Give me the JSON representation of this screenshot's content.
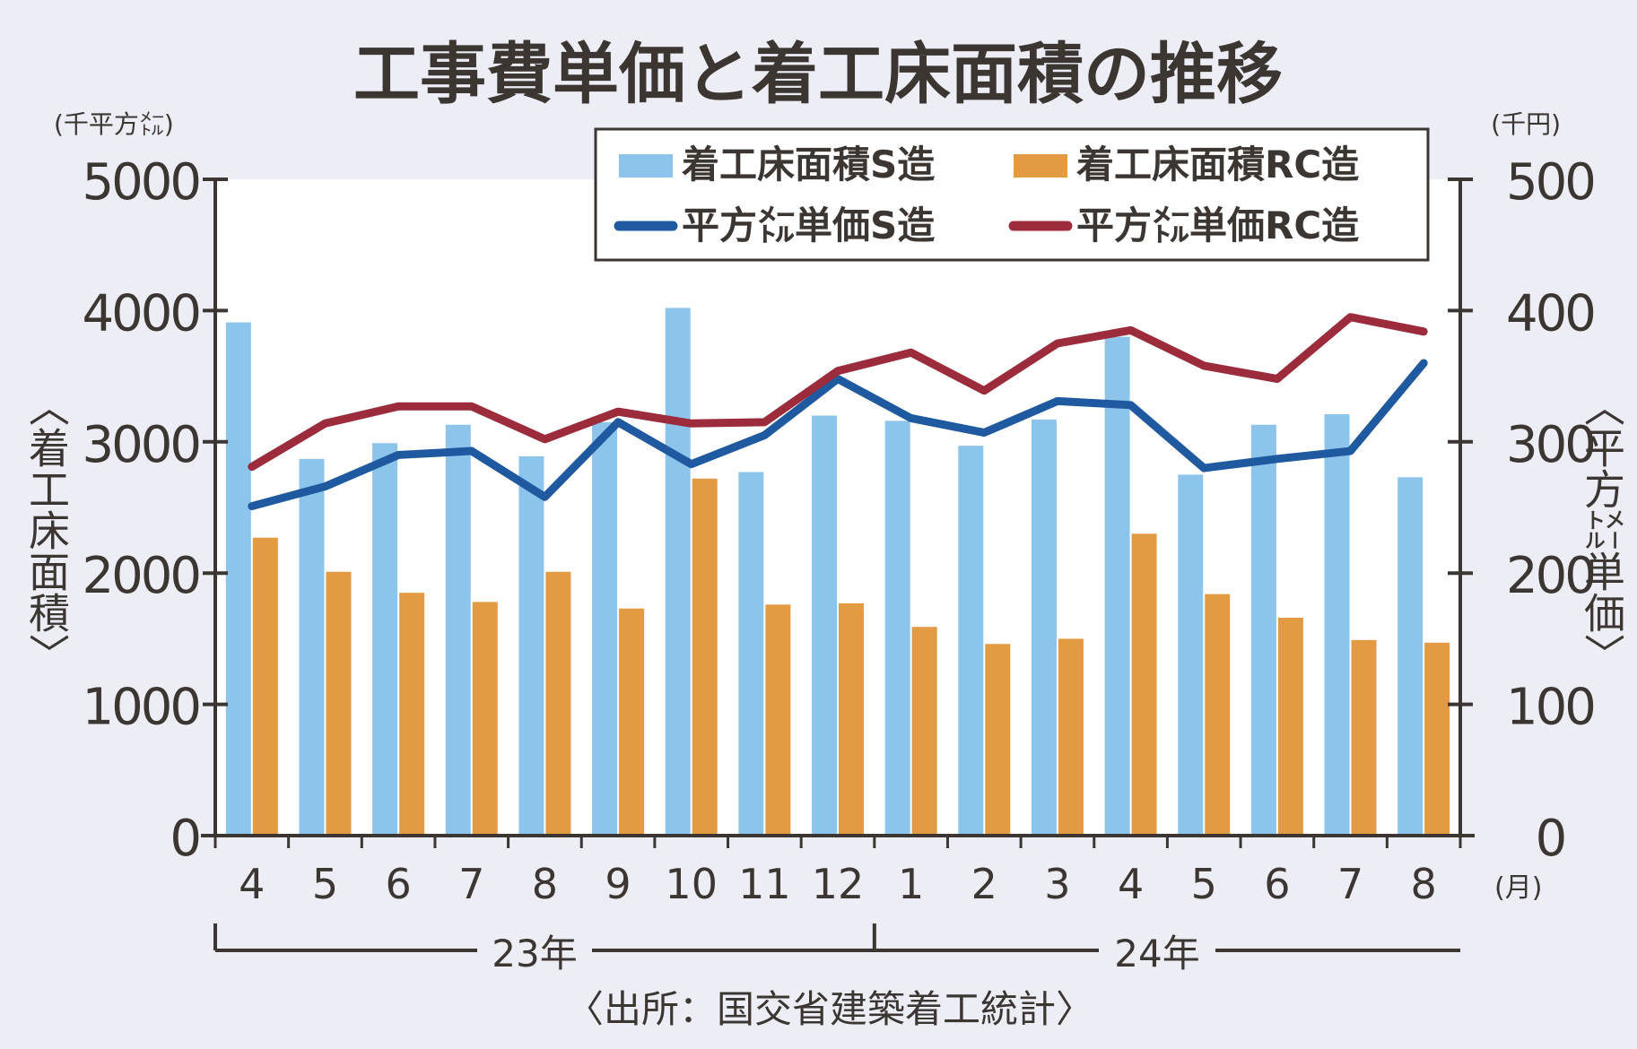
{
  "colors": {
    "background": "#ecedf5",
    "plot_bg": "#ffffff",
    "axis": "#3b3632",
    "bar_s": "#8cc4ec",
    "bar_rc": "#e29a43",
    "line_s": "#1f5aa0",
    "line_rc": "#9c2b3b"
  },
  "chart_data": {
    "type": "bar",
    "title": "工事費単価と着工床面積の推移",
    "categories": [
      "4",
      "5",
      "6",
      "7",
      "8",
      "9",
      "10",
      "11",
      "12",
      "1",
      "2",
      "3",
      "4",
      "5",
      "6",
      "7",
      "8"
    ],
    "x_unit": "(月)",
    "year_labels": [
      "23年",
      "24年"
    ],
    "ylabel_left": "〈着工床面積〉",
    "ylabel_right": "〈平方㍍単価〉",
    "y_unit_left": "(千平方㍍)",
    "y_unit_right": "(千円)",
    "ylim_left": [
      0,
      5000
    ],
    "ylim_right": [
      0,
      500
    ],
    "yticks_left": [
      "0",
      "1000",
      "2000",
      "3000",
      "4000",
      "5000"
    ],
    "yticks_right": [
      "0",
      "100",
      "200",
      "300",
      "400",
      "500"
    ],
    "legend_position": "top-right",
    "series": [
      {
        "name": "着工床面積S造",
        "type": "bar",
        "axis": "left",
        "values": [
          3910,
          2870,
          2990,
          3130,
          2890,
          3150,
          4020,
          2770,
          3200,
          3160,
          2970,
          3170,
          3800,
          2750,
          3130,
          3210,
          2730
        ]
      },
      {
        "name": "着工床面積RC造",
        "type": "bar",
        "axis": "left",
        "values": [
          2270,
          2010,
          1850,
          1780,
          2010,
          1730,
          2720,
          1760,
          1770,
          1590,
          1460,
          1500,
          2300,
          1840,
          1660,
          1490,
          1470
        ]
      },
      {
        "name": "平方㍍単価S造",
        "type": "line",
        "axis": "right",
        "values": [
          251,
          266,
          290,
          293,
          258,
          315,
          283,
          305,
          348,
          318,
          307,
          331,
          328,
          280,
          287,
          293,
          360
        ]
      },
      {
        "name": "平方㍍単価RC造",
        "type": "line",
        "axis": "right",
        "values": [
          281,
          314,
          327,
          327,
          302,
          323,
          314,
          315,
          354,
          368,
          339,
          375,
          385,
          358,
          348,
          395,
          384
        ]
      }
    ],
    "source": "〈出所：国交省建築着工統計〉"
  }
}
